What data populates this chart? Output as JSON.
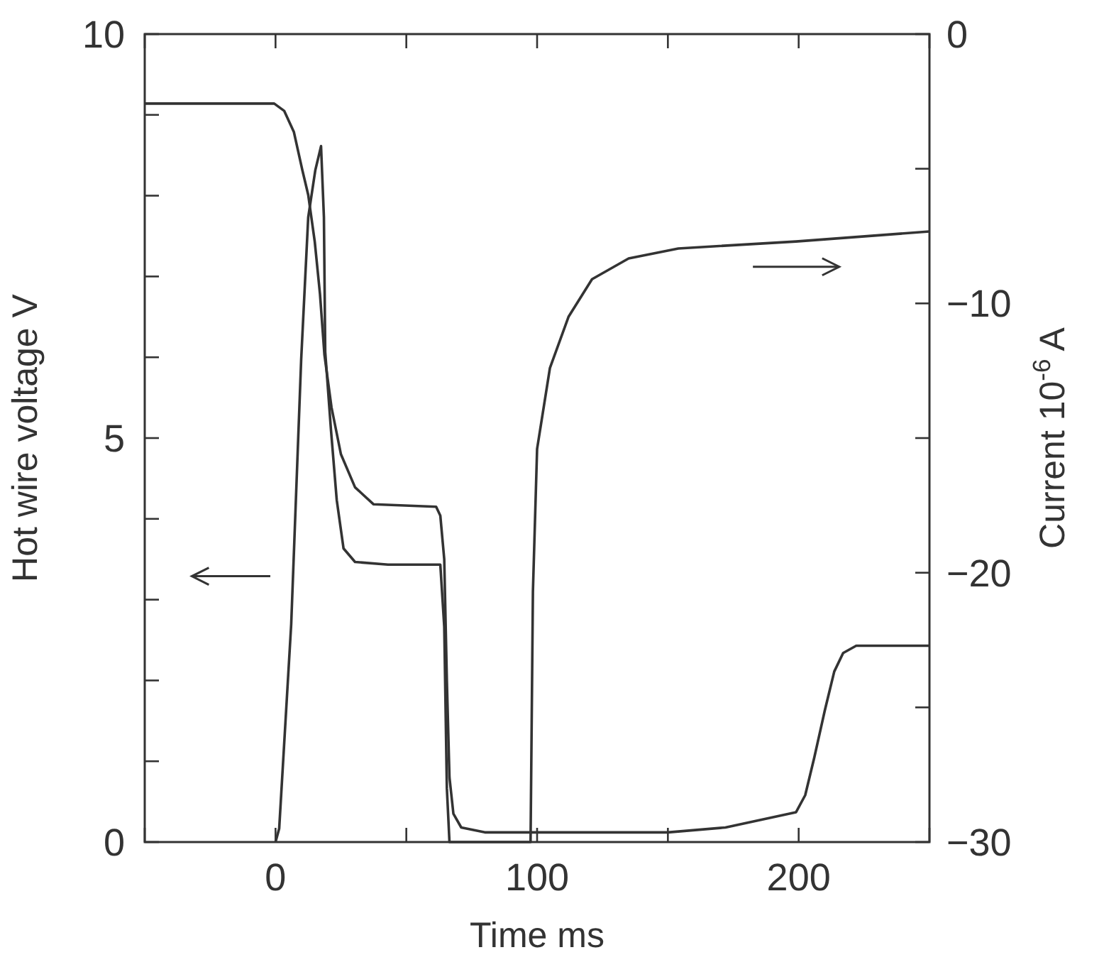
{
  "chart_data": {
    "type": "line",
    "xlabel": "Time  ms",
    "ylabel": "Hot wire voltage  V",
    "y2label": "Current  10$^{-6}$ A",
    "xlim": [
      -50,
      250
    ],
    "xticks": [
      {
        "value": -50,
        "label": null
      },
      0,
      {
        "value": 50,
        "label": null
      },
      100,
      {
        "value": 150,
        "label": null
      },
      200,
      {
        "value": 250,
        "label": null
      }
    ],
    "ylim": [
      0,
      10
    ],
    "yticks": [
      0,
      {
        "value": 1,
        "label": null
      },
      {
        "value": 2,
        "label": null
      },
      {
        "value": 3,
        "label": null
      },
      {
        "value": 4,
        "label": null
      },
      5,
      {
        "value": 6,
        "label": null
      },
      {
        "value": 7,
        "label": null
      },
      {
        "value": 8,
        "label": null
      },
      {
        "value": 9,
        "label": null
      },
      10
    ],
    "y2lim": [
      -30,
      0
    ],
    "y2ticks": [
      {
        "value": -30,
        "label": "−30"
      },
      {
        "value": -25,
        "label": null
      },
      {
        "value": -20,
        "label": "−20"
      },
      {
        "value": -15,
        "label": null
      },
      {
        "value": -10,
        "label": "−10"
      },
      {
        "value": -5,
        "label": null
      },
      0
    ],
    "grid": false,
    "marker": "none",
    "line_style": "solid",
    "series": [
      {
        "color": "#333333",
        "axis": "y",
        "x": [
          -50,
          -0.5,
          3.3,
          7,
          10.3,
          12.5,
          15,
          17,
          18.7,
          21.4,
          25,
          30.4,
          37.5,
          61.4,
          63,
          64.5,
          65.5,
          66.5,
          68,
          71,
          80,
          150,
          172,
          199,
          202.5,
          206,
          210,
          213.6,
          217,
          222,
          250
        ],
        "values": [
          9.14,
          9.14,
          9.05,
          8.79,
          8.31,
          8.01,
          7.43,
          6.78,
          6.03,
          5.38,
          4.8,
          4.39,
          4.18,
          4.15,
          4.04,
          3.5,
          2,
          0.8,
          0.35,
          0.18,
          0.12,
          0.12,
          0.18,
          0.37,
          0.58,
          1.05,
          1.63,
          2.11,
          2.34,
          2.43,
          2.43
        ]
      },
      {
        "color": "#333333",
        "axis": "y2",
        "x": [
          0,
          1.4,
          6,
          9.8,
          12.5,
          15.2,
          17.4,
          18.5,
          19,
          21.2,
          23.4,
          26,
          30.4,
          43,
          63,
          64.5,
          65.5,
          66.5,
          97.5,
          98.4,
          100,
          104.9,
          112,
          121,
          135,
          154,
          199,
          250
        ],
        "values": [
          -30,
          -29.5,
          -21.9,
          -12.1,
          -6.8,
          -5.06,
          -4.16,
          -6.8,
          -11.8,
          -14.7,
          -17.3,
          -19.1,
          -19.6,
          -19.7,
          -19.7,
          -22,
          -28,
          -30,
          -30,
          -20.7,
          -15.4,
          -12.4,
          -10.5,
          -9.1,
          -8.33,
          -7.96,
          -7.7,
          -7.33
        ]
      }
    ]
  }
}
